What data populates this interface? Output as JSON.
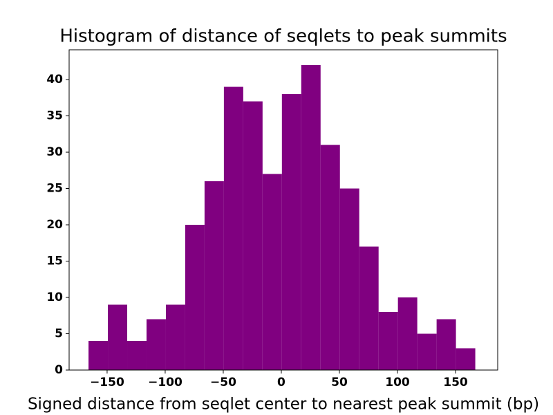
{
  "chart_data": {
    "type": "histogram",
    "title": "Histogram of distance of seqlets to peak summits",
    "x_label": "Signed distance from seqlet center to nearest peak summit (bp)",
    "bins": [
      -166,
      -149.35,
      -132.7,
      -116.05,
      -99.4,
      -82.75,
      -66.1,
      -49.45,
      -32.8,
      -16.15,
      0.5,
      17.15,
      33.8,
      50.45,
      67.1,
      83.75,
      100.4,
      117.05,
      133.7,
      150.35,
      167
    ],
    "values": [
      4,
      9,
      4,
      7,
      9,
      20,
      26,
      39,
      37,
      27,
      38,
      42,
      31,
      25,
      17,
      8,
      10,
      5,
      7,
      3
    ],
    "color": "#800080",
    "xlim": [
      -182.7,
      186.3
    ],
    "xticks": [
      {
        "value": -150,
        "label": "−150"
      },
      {
        "value": -100,
        "label": "−100"
      },
      {
        "value": -50,
        "label": "−50"
      },
      0,
      50,
      100,
      150
    ],
    "ylim": [
      0,
      44.1
    ],
    "yticks": [
      0,
      5,
      10,
      15,
      20,
      25,
      30,
      35,
      40
    ],
    "grid": false
  }
}
